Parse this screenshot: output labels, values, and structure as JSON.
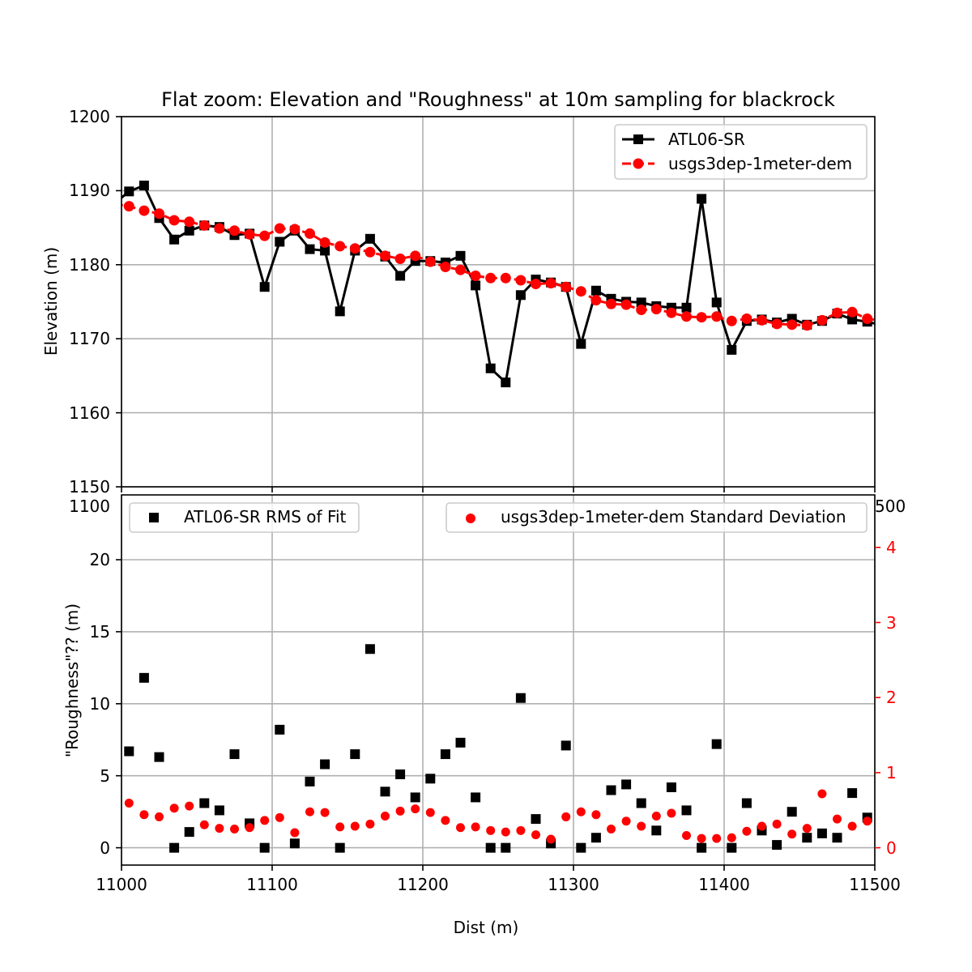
{
  "chart_data": [
    {
      "type": "line",
      "title": "Flat zoom: Elevation and \"Roughness\" at 10m sampling for blackrock",
      "xlabel": "",
      "ylabel": "Elevation (m)",
      "xlim": [
        11000,
        11500
      ],
      "ylim": [
        1150,
        1200
      ],
      "xticks": [
        11000,
        11100,
        11200,
        11300,
        11400,
        11500
      ],
      "yticks": [
        1150,
        1160,
        1170,
        1180,
        1190,
        1200
      ],
      "grid": true,
      "legend_position": "upper right",
      "series": [
        {
          "name": "ATL06-SR",
          "color": "#000000",
          "marker": "square",
          "linestyle": "solid",
          "x": [
            10995,
            11005,
            11015,
            11025,
            11035,
            11045,
            11055,
            11065,
            11075,
            11085,
            11095,
            11105,
            11115,
            11125,
            11135,
            11145,
            11155,
            11165,
            11175,
            11185,
            11195,
            11205,
            11215,
            11225,
            11235,
            11245,
            11255,
            11265,
            11275,
            11285,
            11295,
            11305,
            11315,
            11325,
            11335,
            11345,
            11355,
            11365,
            11375,
            11385,
            11395,
            11405,
            11415,
            11425,
            11435,
            11445,
            11455,
            11465,
            11475,
            11485,
            11495,
            11505
          ],
          "values": [
            1188.2,
            1189.9,
            1190.7,
            1186.3,
            1183.4,
            1184.6,
            1185.3,
            1185.1,
            1184.0,
            1184.2,
            1177.0,
            1183.1,
            1184.6,
            1182.1,
            1181.9,
            1173.7,
            1181.9,
            1183.5,
            1181.1,
            1178.5,
            1180.5,
            1180.5,
            1180.3,
            1181.2,
            1177.2,
            1166.0,
            1164.1,
            1175.9,
            1178.0,
            1177.6,
            1177.0,
            1169.3,
            1176.5,
            1175.4,
            1175.0,
            1174.9,
            1174.4,
            1174.2,
            1174.2,
            1188.9,
            1174.9,
            1168.5,
            1172.4,
            1172.6,
            1172.2,
            1172.7,
            1171.9,
            1172.4,
            1173.4,
            1172.6,
            1172.3,
            1171.8
          ]
        },
        {
          "name": "usgs3dep-1meter-dem",
          "color": "#ff0000",
          "marker": "circle",
          "linestyle": "dashed",
          "x": [
            10995,
            11005,
            11015,
            11025,
            11035,
            11045,
            11055,
            11065,
            11075,
            11085,
            11095,
            11105,
            11115,
            11125,
            11135,
            11145,
            11155,
            11165,
            11175,
            11185,
            11195,
            11205,
            11215,
            11225,
            11235,
            11245,
            11255,
            11265,
            11275,
            11285,
            11295,
            11305,
            11315,
            11325,
            11335,
            11345,
            11355,
            11365,
            11375,
            11385,
            11395,
            11405,
            11415,
            11425,
            11435,
            11445,
            11455,
            11465,
            11475,
            11485,
            11495,
            11505
          ],
          "values": [
            1188.2,
            1187.9,
            1187.3,
            1186.9,
            1186.0,
            1185.8,
            1185.3,
            1184.9,
            1184.6,
            1184.1,
            1183.9,
            1184.9,
            1184.8,
            1184.2,
            1183.0,
            1182.5,
            1182.2,
            1181.7,
            1181.2,
            1180.8,
            1181.2,
            1180.4,
            1179.7,
            1179.3,
            1178.5,
            1178.2,
            1178.2,
            1177.9,
            1177.4,
            1177.5,
            1177.0,
            1176.4,
            1175.2,
            1174.7,
            1174.6,
            1173.9,
            1174.0,
            1173.5,
            1173.0,
            1172.9,
            1173.0,
            1172.4,
            1172.7,
            1172.5,
            1172.0,
            1171.9,
            1171.8,
            1172.5,
            1173.5,
            1173.6,
            1172.7,
            1172.4
          ]
        }
      ]
    },
    {
      "type": "scatter",
      "title": "",
      "xlabel": "Dist (m)",
      "ylabel": "\"Roughness\"?? (m)",
      "xlim": [
        11000,
        11500
      ],
      "ylim": [
        -1.2,
        24.5
      ],
      "ylim_right": [
        -0.24,
        4.9
      ],
      "xticks": [
        11000,
        11100,
        11200,
        11300,
        11400,
        11500
      ],
      "yticks": [
        0,
        5,
        10,
        15,
        20
      ],
      "yticks_right": [
        0,
        1,
        2,
        3,
        4
      ],
      "clipped_tick_labels": {
        "left_top": "1100",
        "right_top": "500"
      },
      "right_axis_color": "#ff0000",
      "grid": true,
      "legend_position_left": "upper left",
      "legend_position_right": "upper right",
      "series": [
        {
          "name": "ATL06-SR RMS of Fit",
          "axis": "left",
          "color": "#000000",
          "marker": "square",
          "x": [
            11005,
            11015,
            11025,
            11035,
            11045,
            11055,
            11065,
            11075,
            11085,
            11095,
            11105,
            11115,
            11125,
            11135,
            11145,
            11155,
            11165,
            11175,
            11185,
            11195,
            11205,
            11215,
            11225,
            11235,
            11245,
            11255,
            11265,
            11275,
            11285,
            11295,
            11305,
            11315,
            11325,
            11335,
            11345,
            11355,
            11365,
            11375,
            11385,
            11395,
            11405,
            11415,
            11425,
            11435,
            11445,
            11455,
            11465,
            11475,
            11485,
            11495
          ],
          "values": [
            6.7,
            11.8,
            6.3,
            0.0,
            1.1,
            3.1,
            2.6,
            6.5,
            1.7,
            0.0,
            8.2,
            0.3,
            4.6,
            5.8,
            0.0,
            6.5,
            13.8,
            3.9,
            5.1,
            3.5,
            4.8,
            6.5,
            7.3,
            3.5,
            0.0,
            0.0,
            10.4,
            2.0,
            0.3,
            7.1,
            0.0,
            0.7,
            4.0,
            4.4,
            3.1,
            1.2,
            4.2,
            2.6,
            0.0,
            7.2,
            0.0,
            3.1,
            1.2,
            0.2,
            2.5,
            0.7,
            1.0,
            0.7,
            3.8,
            2.1
          ]
        },
        {
          "name": "usgs3dep-1meter-dem Standard Deviation",
          "axis": "right",
          "color": "#ff0000",
          "marker": "circle",
          "x": [
            11005,
            11015,
            11025,
            11035,
            11045,
            11055,
            11065,
            11075,
            11085,
            11095,
            11105,
            11115,
            11125,
            11135,
            11145,
            11155,
            11165,
            11175,
            11185,
            11195,
            11205,
            11215,
            11225,
            11235,
            11245,
            11255,
            11265,
            11275,
            11285,
            11295,
            11305,
            11315,
            11325,
            11335,
            11345,
            11355,
            11365,
            11375,
            11385,
            11395,
            11405,
            11415,
            11425,
            11435,
            11445,
            11455,
            11465,
            11475,
            11485,
            11495
          ],
          "values": [
            0.62,
            0.46,
            0.43,
            0.55,
            0.58,
            0.32,
            0.27,
            0.26,
            0.28,
            0.38,
            0.42,
            0.21,
            0.5,
            0.49,
            0.29,
            0.3,
            0.33,
            0.44,
            0.51,
            0.54,
            0.49,
            0.38,
            0.28,
            0.29,
            0.24,
            0.22,
            0.24,
            0.18,
            0.12,
            0.43,
            0.5,
            0.46,
            0.26,
            0.37,
            0.3,
            0.44,
            0.48,
            0.17,
            0.13,
            0.13,
            0.14,
            0.23,
            0.3,
            0.33,
            0.19,
            0.27,
            0.75,
            0.4,
            0.3,
            0.37
          ]
        }
      ]
    }
  ]
}
